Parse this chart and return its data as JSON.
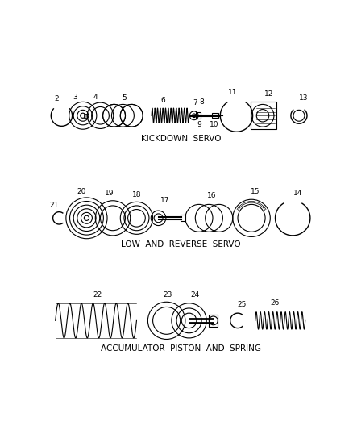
{
  "background_color": "#ffffff",
  "line_color": "#000000",
  "section1_label": "KICKDOWN  SERVO",
  "section2_label": "LOW  AND  REVERSE  SERVO",
  "section3_label": "ACCUMULATOR  PISTON  AND  SPRING",
  "label_fontsize": 7.5,
  "number_fontsize": 6.5,
  "fig_width": 4.38,
  "fig_height": 5.33
}
